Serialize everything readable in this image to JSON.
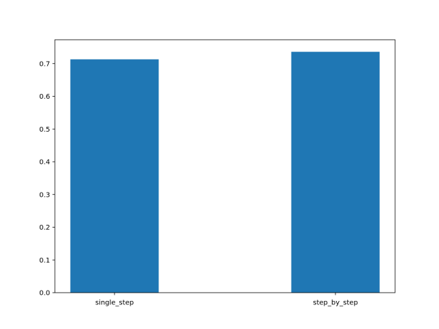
{
  "chart_data": {
    "type": "bar",
    "categories": [
      "single_step",
      "step_by_step"
    ],
    "values": [
      0.713,
      0.736
    ],
    "title": "",
    "xlabel": "",
    "ylabel": "",
    "ylim": [
      0,
      0.7728
    ],
    "yticks": [
      0.0,
      0.1,
      0.2,
      0.3,
      0.4,
      0.5,
      0.6,
      0.7
    ],
    "ytick_labels": [
      "0.0",
      "0.1",
      "0.2",
      "0.3",
      "0.4",
      "0.5",
      "0.6",
      "0.7"
    ],
    "grid": false,
    "legend": "none",
    "bar_color": "#1f77b4"
  }
}
